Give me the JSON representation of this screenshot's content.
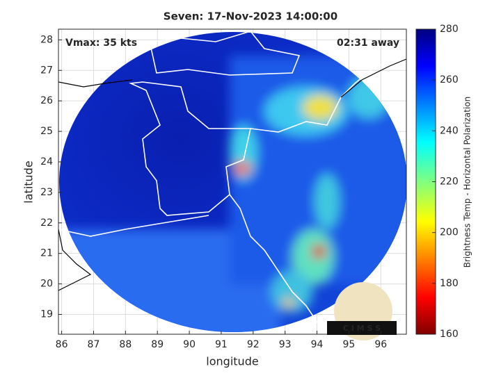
{
  "chart_data": {
    "type": "map",
    "title": "Seven: 17-Nov-2023 14:00:00",
    "annotation_left": "Vmax: 35 kts",
    "annotation_right": "02:31 away",
    "xlabel": "longitude",
    "ylabel": "latitude",
    "xlim": [
      85.9,
      96.8
    ],
    "ylim": [
      18.35,
      28.35
    ],
    "xticks": [
      86,
      87,
      88,
      89,
      90,
      91,
      92,
      93,
      94,
      95,
      96
    ],
    "yticks": [
      19,
      20,
      21,
      22,
      23,
      24,
      25,
      26,
      27,
      28
    ],
    "grid": true,
    "colorbar": {
      "label": "Brightness Temp - Horizontal Polarization",
      "lim": [
        160,
        280
      ],
      "ticks": [
        160,
        180,
        200,
        220,
        240,
        260,
        280
      ]
    },
    "logo": "C I M S S"
  }
}
